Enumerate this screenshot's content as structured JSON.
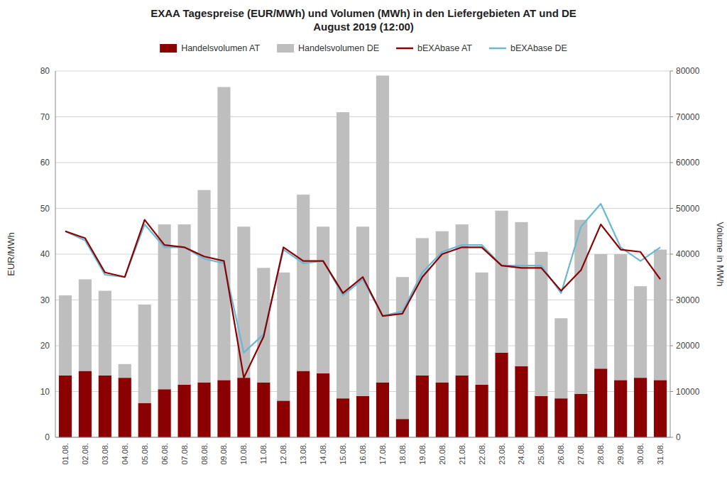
{
  "chart_data": {
    "type": "bar",
    "title": "EXAA Tagespreise (EUR/MWh) und Volumen (MWh) in den Liefergebieten AT und DE\nAugust 2019 (12:00)",
    "categories": [
      "01.08.",
      "02.08.",
      "03.08.",
      "04.08.",
      "05.08.",
      "06.08.",
      "07.08.",
      "08.08.",
      "09.08.",
      "10.08.",
      "11.08.",
      "12.08.",
      "13.08.",
      "14.08.",
      "15.08.",
      "16.08.",
      "17.08.",
      "18.08.",
      "19.08.",
      "20.08.",
      "21.08.",
      "22.08.",
      "23.08.",
      "24.08.",
      "25.08.",
      "26.08.",
      "27.08.",
      "28.08.",
      "29.08.",
      "30.08.",
      "31.08."
    ],
    "series": [
      {
        "name": "Handelsvolumen AT",
        "type": "bar",
        "axis": "y2",
        "color": "#8B0000",
        "values": [
          13500,
          14500,
          13500,
          13000,
          7500,
          10500,
          11500,
          12000,
          12500,
          13000,
          12000,
          8000,
          14500,
          14000,
          8500,
          9000,
          12000,
          4000,
          13500,
          12000,
          13500,
          11500,
          18500,
          15500,
          9000,
          8500,
          9500,
          15000,
          12500,
          13000,
          12500
        ]
      },
      {
        "name": "Handelsvolumen DE",
        "type": "bar",
        "axis": "y2",
        "color": "#BEBEBE",
        "values": [
          17500,
          20000,
          18500,
          3000,
          21500,
          36000,
          35000,
          42000,
          64000,
          33000,
          25000,
          28000,
          38500,
          32000,
          62500,
          37000,
          67000,
          31000,
          30000,
          33000,
          33000,
          24500,
          31000,
          31500,
          31500,
          17500,
          38000,
          25000,
          27500,
          20000,
          28500
        ]
      },
      {
        "name": "bEXAbase AT",
        "type": "line",
        "color": "#8B0000",
        "values": [
          45.0,
          43.5,
          36.0,
          35.0,
          47.5,
          42.0,
          41.5,
          39.5,
          38.5,
          13.0,
          22.0,
          41.5,
          38.5,
          38.5,
          31.5,
          35.0,
          26.5,
          27.0,
          35.0,
          40.0,
          41.5,
          41.5,
          37.5,
          37.0,
          37.0,
          32.0,
          36.5,
          46.5,
          41.0,
          40.5,
          34.5
        ]
      },
      {
        "name": "bEXAbase DE",
        "type": "line",
        "color": "#6BB8D4",
        "values": [
          45.0,
          43.0,
          35.5,
          35.0,
          46.5,
          41.5,
          41.5,
          39.0,
          38.0,
          18.5,
          22.5,
          41.0,
          38.0,
          38.5,
          31.0,
          34.5,
          26.5,
          27.5,
          36.0,
          40.5,
          42.0,
          42.0,
          37.5,
          37.5,
          37.5,
          31.5,
          46.0,
          51.0,
          41.5,
          38.5,
          41.5
        ]
      }
    ],
    "stacked": true,
    "ylabel": "EUR/MWh",
    "y2label": "Volume in MWh",
    "ylim": [
      0,
      80
    ],
    "yticks": [
      0,
      10,
      20,
      30,
      40,
      50,
      60,
      70,
      80
    ],
    "y2lim": [
      0,
      80000
    ],
    "y2ticks": [
      0,
      10000,
      20000,
      30000,
      40000,
      50000,
      60000,
      70000,
      80000
    ],
    "grid": true,
    "legend": "top"
  }
}
